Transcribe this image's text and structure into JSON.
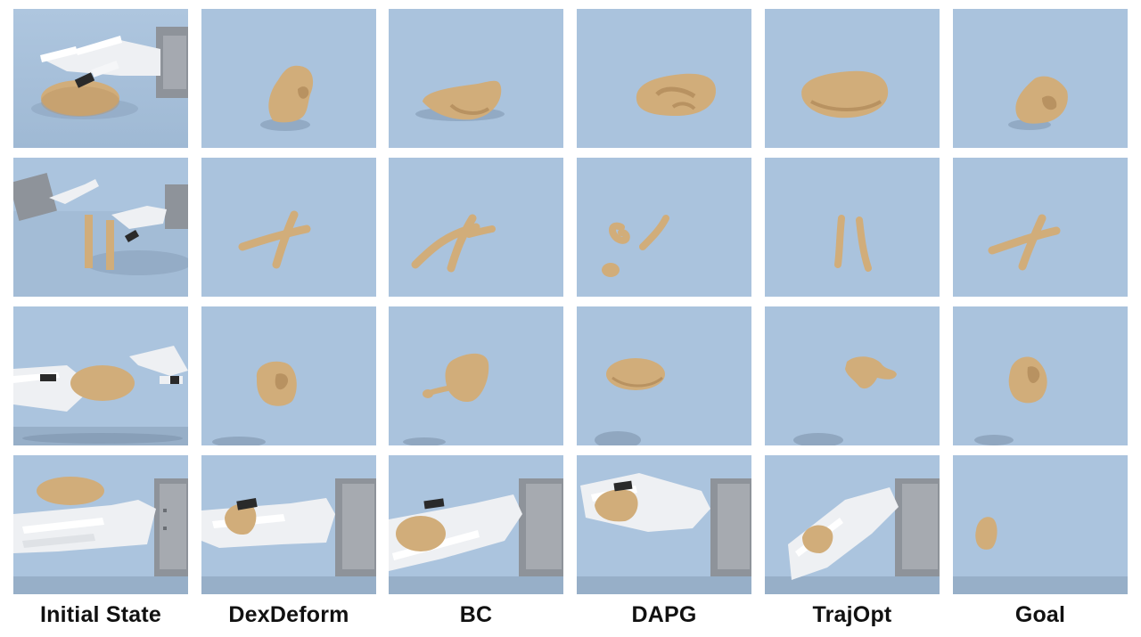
{
  "figure": {
    "columns": [
      "Initial State",
      "DexDeform",
      "BC",
      "DAPG",
      "TrajOpt",
      "Goal"
    ],
    "colors": {
      "background": "#ffffff",
      "scene_sky": "#abc4de",
      "scene_floor": "#a4bdd7",
      "dough": "#d1ad7a",
      "dough_shade": "#b89261",
      "robot_white": "#f1f2f4",
      "robot_gray": "#9b9fa6",
      "marker_black": "#2a2a2a",
      "label_text": "#111111"
    }
  }
}
